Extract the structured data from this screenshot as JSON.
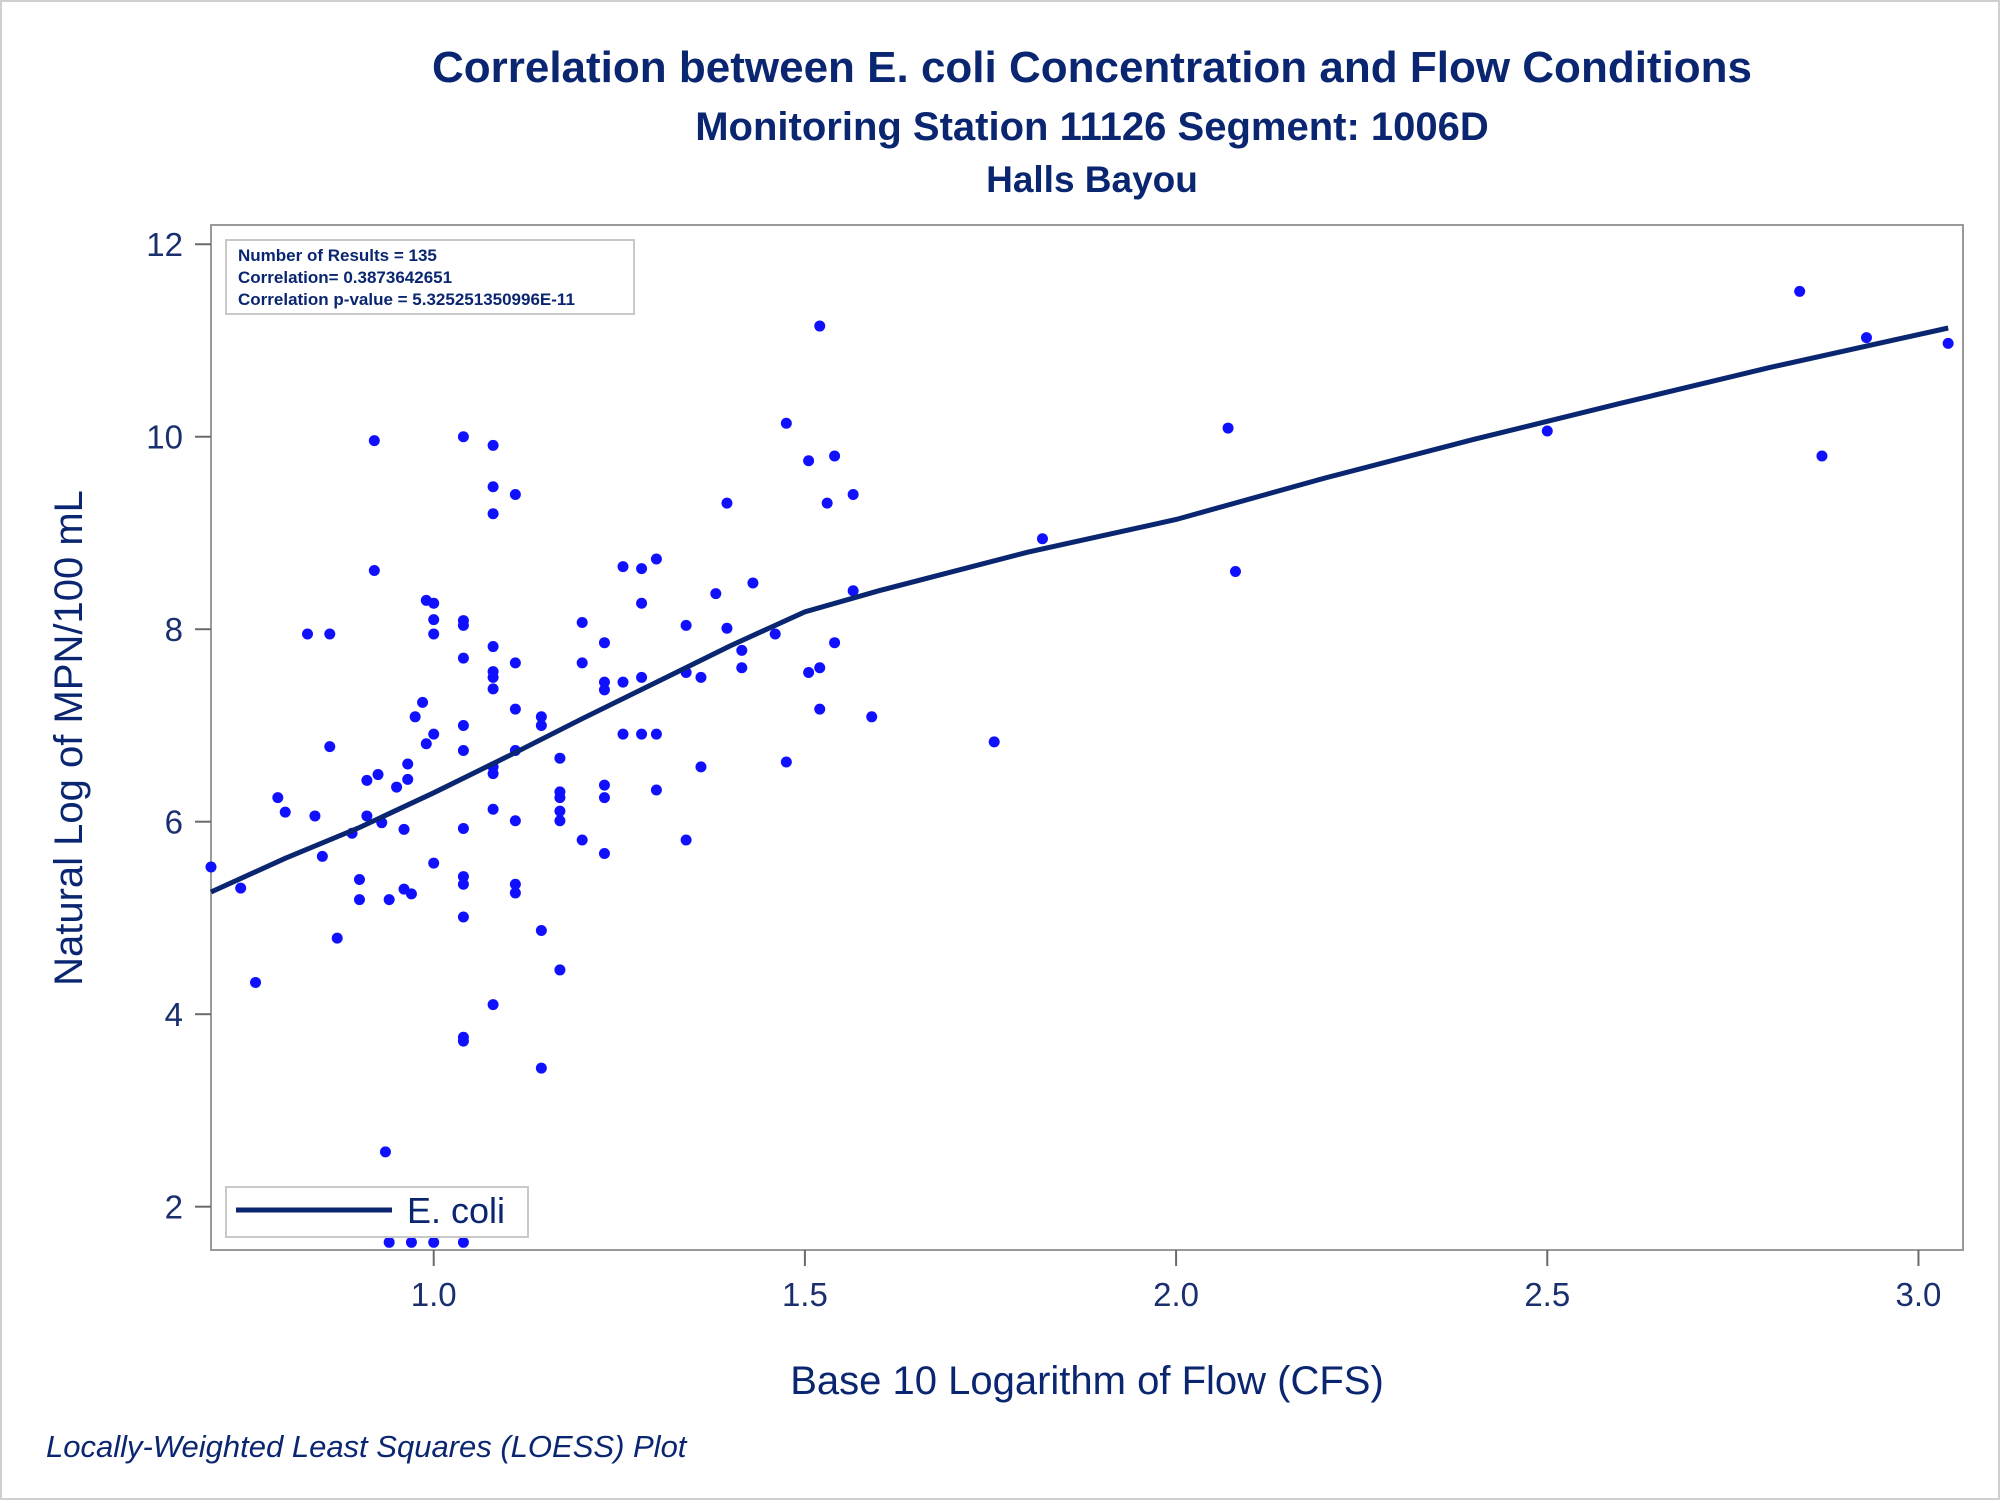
{
  "title": "Correlation between E. coli Concentration and Flow Conditions",
  "subtitle": "Monitoring Station 11126 Segment: 1006D",
  "subtitle2": "Halls Bayou",
  "stats": {
    "line1": "Number of Results = 135",
    "line2": "Correlation= 0.3873642651",
    "line3": "Correlation p-value = 5.325251350996E-11"
  },
  "legend": {
    "label": "E. coli"
  },
  "footnote": "Locally-Weighted Least Squares (LOESS) Plot",
  "colors": {
    "points": "#1010ff",
    "line": "#0b2670",
    "text": "#0b2670",
    "frame": "#9a9a9a"
  },
  "chart_data": {
    "type": "scatter",
    "title": "Correlation between E. coli Concentration and Flow Conditions",
    "xlabel": "Base 10 Logarithm of Flow (CFS)",
    "ylabel": "Natural Log of MPN/100 mL",
    "xlim": [
      0.7,
      3.06
    ],
    "ylim": [
      1.55,
      12.2
    ],
    "x_ticks": [
      1.0,
      1.5,
      2.0,
      2.5,
      3.0
    ],
    "x_tick_labels": [
      "1.0",
      "1.5",
      "2.0",
      "2.5",
      "3.0"
    ],
    "y_ticks": [
      2,
      4,
      6,
      8,
      10,
      12
    ],
    "y_tick_labels": [
      "2",
      "4",
      "6",
      "8",
      "10",
      "12"
    ],
    "grid": false,
    "legend_position": "bottom-left",
    "series": [
      {
        "name": "points",
        "points": [
          [
            0.7,
            5.53
          ],
          [
            0.74,
            5.31
          ],
          [
            0.76,
            4.33
          ],
          [
            0.79,
            6.25
          ],
          [
            0.8,
            6.1
          ],
          [
            0.83,
            7.95
          ],
          [
            0.84,
            6.06
          ],
          [
            0.85,
            5.64
          ],
          [
            0.86,
            7.95
          ],
          [
            0.86,
            6.78
          ],
          [
            0.87,
            4.79
          ],
          [
            0.89,
            5.88
          ],
          [
            0.9,
            5.4
          ],
          [
            0.9,
            5.19
          ],
          [
            0.91,
            6.43
          ],
          [
            0.91,
            6.06
          ],
          [
            0.92,
            8.61
          ],
          [
            0.92,
            9.96
          ],
          [
            0.925,
            6.49
          ],
          [
            0.93,
            5.99
          ],
          [
            0.935,
            2.57
          ],
          [
            0.94,
            5.19
          ],
          [
            0.94,
            1.63
          ],
          [
            0.95,
            6.36
          ],
          [
            0.96,
            5.92
          ],
          [
            0.96,
            5.3
          ],
          [
            0.965,
            6.6
          ],
          [
            0.965,
            6.44
          ],
          [
            0.97,
            5.25
          ],
          [
            0.97,
            1.63
          ],
          [
            0.975,
            7.09
          ],
          [
            0.985,
            7.24
          ],
          [
            0.99,
            8.3
          ],
          [
            0.99,
            6.81
          ],
          [
            1.0,
            8.27
          ],
          [
            1.0,
            8.1
          ],
          [
            1.0,
            7.95
          ],
          [
            1.0,
            6.91
          ],
          [
            1.0,
            5.57
          ],
          [
            1.0,
            1.63
          ],
          [
            1.04,
            10.0
          ],
          [
            1.04,
            8.09
          ],
          [
            1.04,
            8.04
          ],
          [
            1.04,
            7.7
          ],
          [
            1.04,
            7.0
          ],
          [
            1.04,
            6.74
          ],
          [
            1.04,
            5.93
          ],
          [
            1.04,
            5.43
          ],
          [
            1.04,
            5.35
          ],
          [
            1.04,
            5.01
          ],
          [
            1.04,
            3.76
          ],
          [
            1.04,
            3.72
          ],
          [
            1.04,
            1.63
          ],
          [
            1.08,
            9.91
          ],
          [
            1.08,
            9.48
          ],
          [
            1.08,
            9.2
          ],
          [
            1.08,
            7.82
          ],
          [
            1.08,
            7.56
          ],
          [
            1.08,
            7.5
          ],
          [
            1.08,
            7.38
          ],
          [
            1.08,
            6.57
          ],
          [
            1.08,
            6.5
          ],
          [
            1.08,
            6.13
          ],
          [
            1.08,
            4.1
          ],
          [
            1.11,
            9.4
          ],
          [
            1.11,
            7.65
          ],
          [
            1.11,
            7.17
          ],
          [
            1.11,
            6.74
          ],
          [
            1.11,
            6.01
          ],
          [
            1.11,
            5.35
          ],
          [
            1.11,
            5.26
          ],
          [
            1.145,
            7.09
          ],
          [
            1.145,
            7.0
          ],
          [
            1.145,
            4.87
          ],
          [
            1.145,
            3.44
          ],
          [
            1.17,
            6.66
          ],
          [
            1.17,
            6.31
          ],
          [
            1.17,
            6.25
          ],
          [
            1.17,
            6.11
          ],
          [
            1.17,
            6.01
          ],
          [
            1.17,
            4.46
          ],
          [
            1.2,
            8.07
          ],
          [
            1.2,
            7.65
          ],
          [
            1.2,
            5.81
          ],
          [
            1.23,
            7.86
          ],
          [
            1.23,
            7.45
          ],
          [
            1.23,
            7.37
          ],
          [
            1.23,
            6.38
          ],
          [
            1.23,
            6.25
          ],
          [
            1.23,
            5.67
          ],
          [
            1.255,
            8.65
          ],
          [
            1.255,
            7.45
          ],
          [
            1.255,
            6.91
          ],
          [
            1.28,
            8.63
          ],
          [
            1.28,
            8.27
          ],
          [
            1.28,
            7.5
          ],
          [
            1.28,
            6.91
          ],
          [
            1.3,
            8.73
          ],
          [
            1.3,
            6.91
          ],
          [
            1.3,
            6.33
          ],
          [
            1.34,
            8.04
          ],
          [
            1.34,
            7.55
          ],
          [
            1.34,
            5.81
          ],
          [
            1.36,
            7.5
          ],
          [
            1.36,
            6.57
          ],
          [
            1.38,
            8.37
          ],
          [
            1.395,
            9.31
          ],
          [
            1.395,
            8.01
          ],
          [
            1.415,
            7.78
          ],
          [
            1.415,
            7.6
          ],
          [
            1.43,
            8.48
          ],
          [
            1.46,
            7.95
          ],
          [
            1.475,
            10.14
          ],
          [
            1.475,
            6.62
          ],
          [
            1.505,
            9.75
          ],
          [
            1.505,
            7.55
          ],
          [
            1.52,
            11.15
          ],
          [
            1.52,
            7.6
          ],
          [
            1.52,
            7.17
          ],
          [
            1.53,
            9.31
          ],
          [
            1.54,
            9.8
          ],
          [
            1.54,
            7.86
          ],
          [
            1.565,
            9.4
          ],
          [
            1.565,
            8.4
          ],
          [
            1.59,
            7.09
          ],
          [
            1.755,
            6.83
          ],
          [
            1.82,
            8.94
          ],
          [
            2.07,
            10.09
          ],
          [
            2.08,
            8.6
          ],
          [
            2.5,
            10.06
          ],
          [
            2.84,
            11.51
          ],
          [
            2.87,
            9.8
          ],
          [
            2.93,
            11.03
          ],
          [
            3.04,
            10.97
          ]
        ]
      },
      {
        "name": "E. coli",
        "type": "line",
        "x": [
          0.7,
          0.8,
          0.9,
          1.0,
          1.1,
          1.2,
          1.3,
          1.4,
          1.5,
          1.6,
          1.8,
          2.0,
          2.2,
          2.4,
          2.6,
          2.8,
          3.04
        ],
        "y": [
          5.27,
          5.62,
          5.94,
          6.3,
          6.68,
          7.07,
          7.45,
          7.83,
          8.18,
          8.4,
          8.8,
          9.14,
          9.57,
          9.97,
          10.35,
          10.72,
          11.13
        ]
      }
    ]
  }
}
